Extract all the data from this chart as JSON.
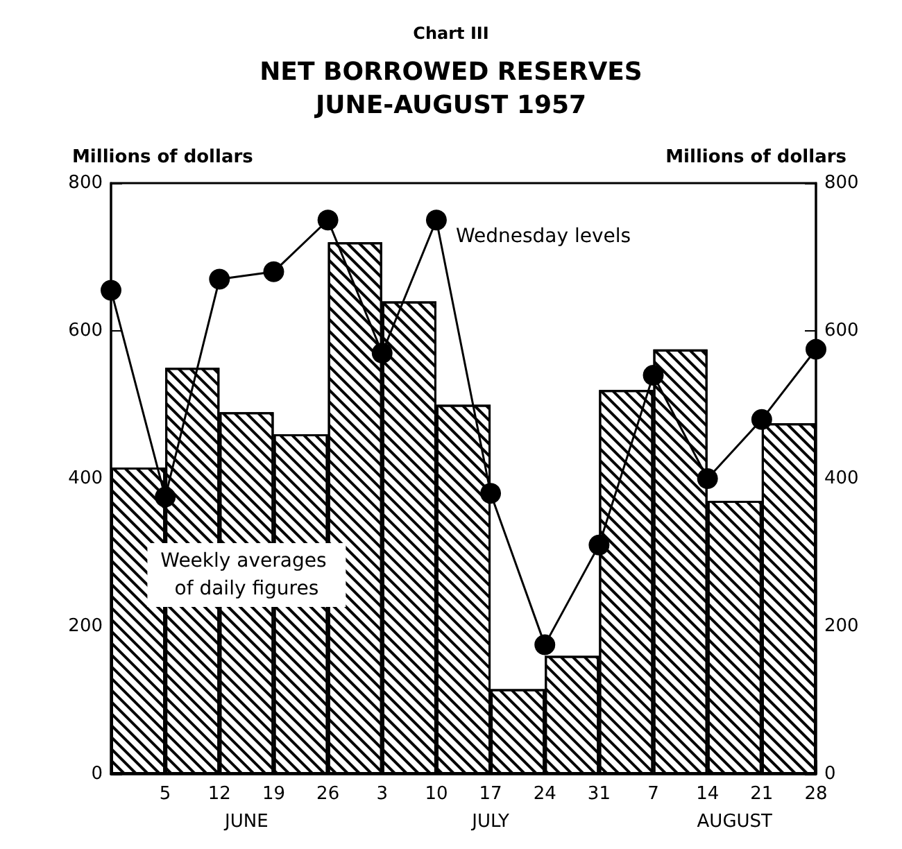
{
  "chart_data": {
    "type": "bar",
    "title": "NET BORROWED RESERVES",
    "subtitle": "JUNE-AUGUST 1957",
    "ylabel": "Millions of dollars",
    "y2label": "Millions of dollars",
    "annotations": [
      "Chart III",
      "JUNE",
      "JULY",
      "AUGUST"
    ],
    "series": [
      {
        "name": "Weekly averages of daily figures",
        "color": "#000000",
        "x": [
          "1957-06-01T12:00",
          "1957-06-08T12:00",
          "1957-06-15T12:00",
          "1957-06-22T12:00",
          "1957-06-29T12:00",
          "1957-07-06T12:00",
          "1957-07-13T12:00",
          "1957-07-20T12:00",
          "1957-07-27T12:00",
          "1957-08-03T12:00",
          "1957-08-10T12:00",
          "1957-08-17T12:00",
          "1957-08-24T12:00"
        ],
        "values": [
          415,
          550,
          490,
          460,
          720,
          640,
          500,
          115,
          160,
          520,
          575,
          370,
          475
        ]
      },
      {
        "name": "Wednesday levels",
        "type": "line",
        "color": "#000000",
        "x": [
          "1957-05-29",
          "1957-06-05",
          "1957-06-12",
          "1957-06-19",
          "1957-06-26",
          "1957-07-03",
          "1957-07-10",
          "1957-07-17",
          "1957-07-24",
          "1957-07-31",
          "1957-08-07",
          "1957-08-14",
          "1957-08-21",
          "1957-08-28"
        ],
        "values": [
          655,
          375,
          670,
          680,
          750,
          570,
          750,
          380,
          175,
          310,
          540,
          400,
          480,
          575
        ]
      }
    ],
    "xlim": [
      "1957-05-29",
      "1957-08-28"
    ],
    "xticks": [
      {
        "value": "1957-06-05",
        "label": "5"
      },
      {
        "value": "1957-06-12",
        "label": "12"
      },
      {
        "value": "1957-06-19",
        "label": "19"
      },
      {
        "value": "1957-06-26",
        "label": "26"
      },
      {
        "value": "1957-07-03",
        "label": "3"
      },
      {
        "value": "1957-07-10",
        "label": "10"
      },
      {
        "value": "1957-07-17",
        "label": "17"
      },
      {
        "value": "1957-07-24",
        "label": "24"
      },
      {
        "value": "1957-07-31",
        "label": "31"
      },
      {
        "value": "1957-08-07",
        "label": "7"
      },
      {
        "value": "1957-08-14",
        "label": "14"
      },
      {
        "value": "1957-08-21",
        "label": "21"
      },
      {
        "value": "1957-08-28",
        "label": "28"
      }
    ],
    "ylim": [
      0,
      800
    ],
    "yticks": [
      0,
      200,
      400,
      600,
      800
    ],
    "y2lim": [
      0,
      800
    ],
    "y2ticks": [
      0,
      200,
      400,
      600,
      800
    ],
    "marker": "circle",
    "line_style": "solid",
    "grid": false,
    "legend": false
  }
}
